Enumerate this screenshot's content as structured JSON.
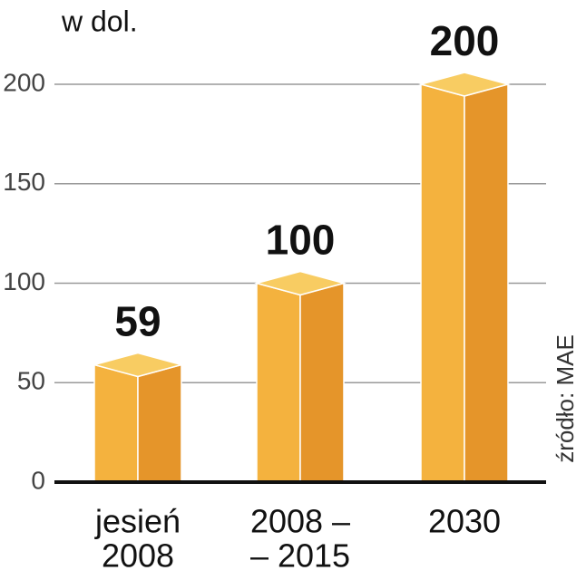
{
  "chart_data": {
    "type": "bar3d",
    "axis_label": "w dol.",
    "source": "źródło: MAE",
    "categories": [
      [
        "jesień",
        "2008"
      ],
      [
        "2008 –",
        "– 2015"
      ],
      [
        "2030"
      ]
    ],
    "values": [
      59,
      100,
      200
    ],
    "colors": {
      "front": "#f4b23e",
      "side": "#e5952a",
      "top": "#f8cc62"
    },
    "ylim": [
      0,
      200
    ],
    "yticks": [
      0,
      50,
      100,
      150,
      200
    ],
    "grid": true
  }
}
